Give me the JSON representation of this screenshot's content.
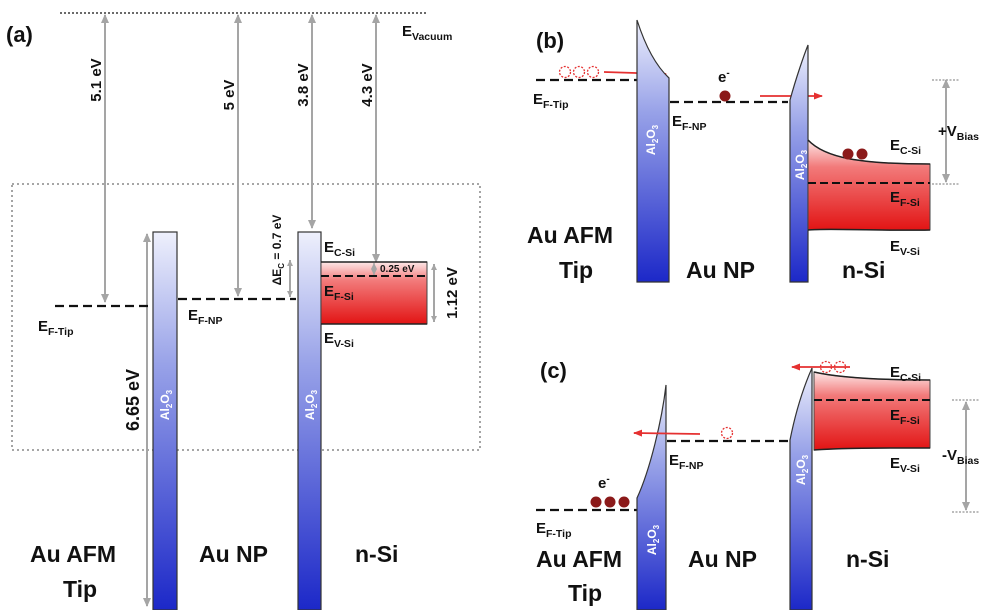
{
  "panels": {
    "a": "(a)",
    "b": "(b)",
    "c": "(c)"
  },
  "oxide": {
    "main": "Al",
    "s1": "2",
    "o": "O",
    "s2": "3"
  },
  "electron": {
    "base": "e",
    "sup": "-"
  },
  "panel_a": {
    "vacuum": {
      "base": "E",
      "sub": "Vacuum"
    },
    "gap_tip": "5.1 eV",
    "gap_np": "5 eV",
    "gap_csi": "3.8 eV",
    "gap_fsi": "4.3 eV",
    "delta_ec": {
      "pre": "ΔE",
      "sub": "C",
      "post": " = 0.7 eV"
    },
    "offset": "0.25 eV",
    "bandgap": "1.12 eV",
    "barrier": "6.65 eV",
    "ef_tip": {
      "base": "E",
      "sub": "F-Tip"
    },
    "ef_np": {
      "base": "E",
      "sub": "F-NP"
    },
    "ec_si": {
      "base": "E",
      "sub": "C-Si"
    },
    "ef_si": {
      "base": "E",
      "sub": "F-Si"
    },
    "ev_si": {
      "base": "E",
      "sub": "V-Si"
    },
    "label_tip_1": "Au AFM",
    "label_tip_2": "Tip",
    "label_np": "Au NP",
    "label_si": "n-Si"
  },
  "panel_b": {
    "ef_tip": {
      "base": "E",
      "sub": "F-Tip"
    },
    "ef_np": {
      "base": "E",
      "sub": "F-NP"
    },
    "ec_si": {
      "base": "E",
      "sub": "C-Si"
    },
    "ef_si": {
      "base": "E",
      "sub": "F-Si"
    },
    "ev_si": {
      "base": "E",
      "sub": "V-Si"
    },
    "bias": {
      "base": "+V",
      "sub": "Bias"
    },
    "label_tip_1": "Au AFM",
    "label_tip_2": "Tip",
    "label_np": "Au NP",
    "label_si": "n-Si"
  },
  "panel_c": {
    "ef_tip": {
      "base": "E",
      "sub": "F-Tip"
    },
    "ef_np": {
      "base": "E",
      "sub": "F-NP"
    },
    "ec_si": {
      "base": "E",
      "sub": "C-Si"
    },
    "ef_si": {
      "base": "E",
      "sub": "F-Si"
    },
    "ev_si": {
      "base": "E",
      "sub": "V-Si"
    },
    "bias": {
      "base": "-V",
      "sub": "Bias"
    },
    "label_tip_1": "Au AFM",
    "label_tip_2": "Tip",
    "label_np": "Au NP",
    "label_si": "n-Si"
  },
  "colors": {
    "arrow": "#a9a9a9",
    "current": "#e53030",
    "electron": "#8b1a1a",
    "oxide": "#1f2bd0",
    "silicon": "#e61e1e"
  }
}
